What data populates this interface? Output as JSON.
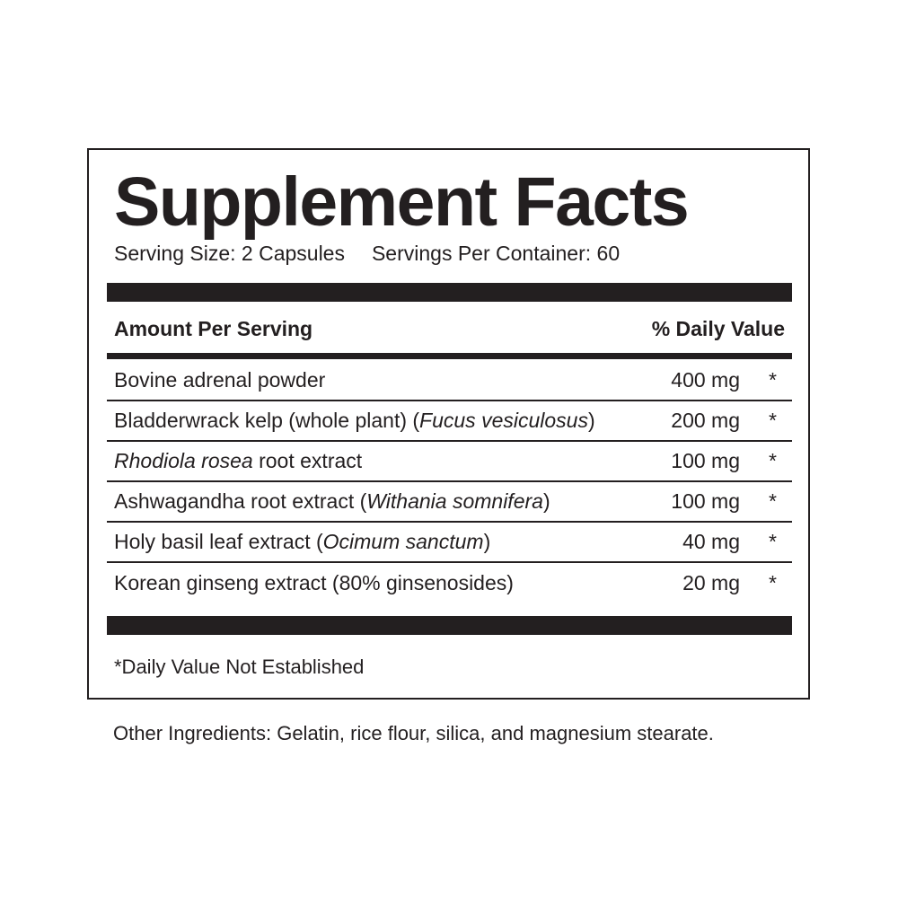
{
  "title": "Supplement Facts",
  "serving_size": "Serving Size: 2 Capsules",
  "servings_per_container": "Servings Per Container: 60",
  "header": {
    "amount": "Amount Per Serving",
    "dv": "% Daily Value"
  },
  "rows": [
    {
      "name": [
        {
          "t": "Bovine adrenal powder",
          "i": false
        }
      ],
      "amount": "400 mg",
      "dv": "*"
    },
    {
      "name": [
        {
          "t": "Bladderwrack kelp (whole plant) (",
          "i": false
        },
        {
          "t": "Fucus vesiculosus",
          "i": true
        },
        {
          "t": ")",
          "i": false
        }
      ],
      "amount": "200 mg",
      "dv": "*"
    },
    {
      "name": [
        {
          "t": "Rhodiola rosea",
          "i": true
        },
        {
          "t": " root extract",
          "i": false
        }
      ],
      "amount": "100 mg",
      "dv": "*"
    },
    {
      "name": [
        {
          "t": "Ashwagandha root extract (",
          "i": false
        },
        {
          "t": "Withania somnifera",
          "i": true
        },
        {
          "t": ")",
          "i": false
        }
      ],
      "amount": "100 mg",
      "dv": "*"
    },
    {
      "name": [
        {
          "t": "Holy basil leaf extract (",
          "i": false
        },
        {
          "t": "Ocimum sanctum",
          "i": true
        },
        {
          "t": ")",
          "i": false
        }
      ],
      "amount": "40 mg",
      "dv": "*"
    },
    {
      "name": [
        {
          "t": "Korean ginseng extract (80% ginsenosides)",
          "i": false
        }
      ],
      "amount": "20 mg",
      "dv": "*"
    }
  ],
  "footnote": "*Daily Value Not Established",
  "other_ingredients": "Other Ingredients: Gelatin, rice flour, silica, and magnesium stearate."
}
